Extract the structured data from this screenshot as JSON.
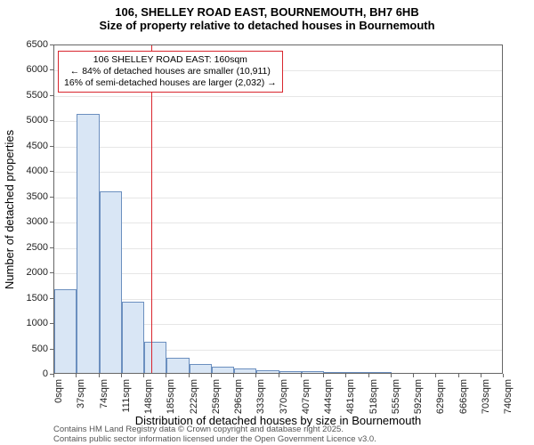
{
  "title": {
    "line1": "106, SHELLEY ROAD EAST, BOURNEMOUTH, BH7 6HB",
    "line2": "Size of property relative to detached houses in Bournemouth"
  },
  "chart": {
    "type": "histogram",
    "x_bin_width": 37,
    "x_start": 0,
    "x_tick_step": 37,
    "x_tick_count": 21,
    "x_tick_unit": "sqm",
    "ylim_max": 6500,
    "ylim_min": 0,
    "y_tick_step": 500,
    "y_axis_label": "Number of detached properties",
    "x_axis_label": "Distribution of detached houses by size in Bournemouth",
    "grid_color": "#e6e6e6",
    "axis_color": "#666666",
    "bar_fill": "#d9e6f5",
    "bar_stroke": "#6b8fbf",
    "background": "#ffffff",
    "label_fontsize": 11,
    "axis_title_fontsize": 13,
    "bars": [
      1650,
      5120,
      3580,
      1400,
      620,
      300,
      180,
      120,
      80,
      60,
      40,
      30,
      20,
      10,
      5,
      0,
      0,
      0,
      0,
      0
    ],
    "marker": {
      "x_value": 160,
      "line_color": "#d9262e",
      "line_width": 1
    },
    "annotation": {
      "border_color": "#d9262e",
      "border_width": 1,
      "bg": "#ffffff",
      "line1": "106 SHELLEY ROAD EAST: 160sqm",
      "line2": "← 84% of detached houses are smaller (10,911)",
      "line3": "16% of semi-detached houses are larger (2,032) →"
    }
  },
  "footer": {
    "line1": "Contains HM Land Registry data © Crown copyright and database right 2025.",
    "line2": "Contains public sector information licensed under the Open Government Licence v3.0."
  }
}
